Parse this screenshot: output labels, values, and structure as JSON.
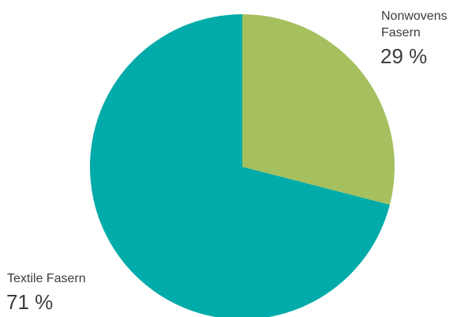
{
  "chart_data": {
    "type": "pie",
    "slices": [
      {
        "name_lines": [
          "Nonwovens",
          "Fasern"
        ],
        "value": 29,
        "value_label": "29 %",
        "color": "#a6bf5f"
      },
      {
        "name_lines": [
          "Textile Fasern"
        ],
        "value": 71,
        "value_label": "71 %",
        "color": "#00aba9"
      }
    ],
    "start": "12 o'clock",
    "direction": "clockwise"
  }
}
